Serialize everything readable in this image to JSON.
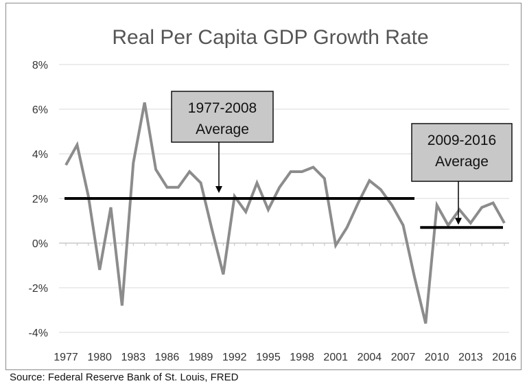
{
  "chart_data": {
    "type": "line",
    "title": "Real Per Capita GDP Growth Rate",
    "xlabel": "",
    "ylabel": "",
    "ylim": [
      -4,
      8
    ],
    "y_ticks": [
      "8%",
      "6%",
      "4%",
      "2%",
      "0%",
      "-2%",
      "-4%"
    ],
    "y_tick_values": [
      8,
      6,
      4,
      2,
      0,
      -2,
      -4
    ],
    "x_ticks": [
      "1977",
      "1980",
      "1983",
      "1986",
      "1989",
      "1992",
      "1995",
      "1998",
      "2001",
      "2004",
      "2007",
      "2010",
      "2013",
      "2016"
    ],
    "x": [
      1977,
      1978,
      1979,
      1980,
      1981,
      1982,
      1983,
      1984,
      1985,
      1986,
      1987,
      1988,
      1989,
      1990,
      1991,
      1992,
      1993,
      1994,
      1995,
      1996,
      1997,
      1998,
      1999,
      2000,
      2001,
      2002,
      2003,
      2004,
      2005,
      2006,
      2007,
      2008,
      2009,
      2010,
      2011,
      2012,
      2013,
      2014,
      2015,
      2016
    ],
    "series": [
      {
        "values": [
          3.5,
          4.4,
          2.1,
          -1.2,
          1.6,
          -2.8,
          3.6,
          6.3,
          3.3,
          2.5,
          2.5,
          3.2,
          2.7,
          0.6,
          -1.4,
          2.1,
          1.4,
          2.7,
          1.5,
          2.5,
          3.2,
          3.2,
          3.4,
          2.9,
          -0.1,
          0.7,
          1.8,
          2.8,
          2.4,
          1.7,
          0.8,
          -1.5,
          -3.6,
          1.7,
          0.8,
          1.5,
          0.9,
          1.6,
          1.8,
          0.9
        ],
        "color": "#8c8c8c"
      }
    ],
    "averages": [
      {
        "label_line1": "1977-2008",
        "label_line2": "Average",
        "value": 2.0,
        "x_start": 1977,
        "x_end": 2008,
        "arrow_x": 1991
      },
      {
        "label_line1": "2009-2016",
        "label_line2": "Average",
        "value": 0.7,
        "x_start": 2009,
        "x_end": 2016,
        "arrow_x": 2012
      }
    ],
    "grid": true,
    "legend": "none"
  },
  "source_text": "Source: Federal Reserve  Bank of St. Louis, FRED"
}
